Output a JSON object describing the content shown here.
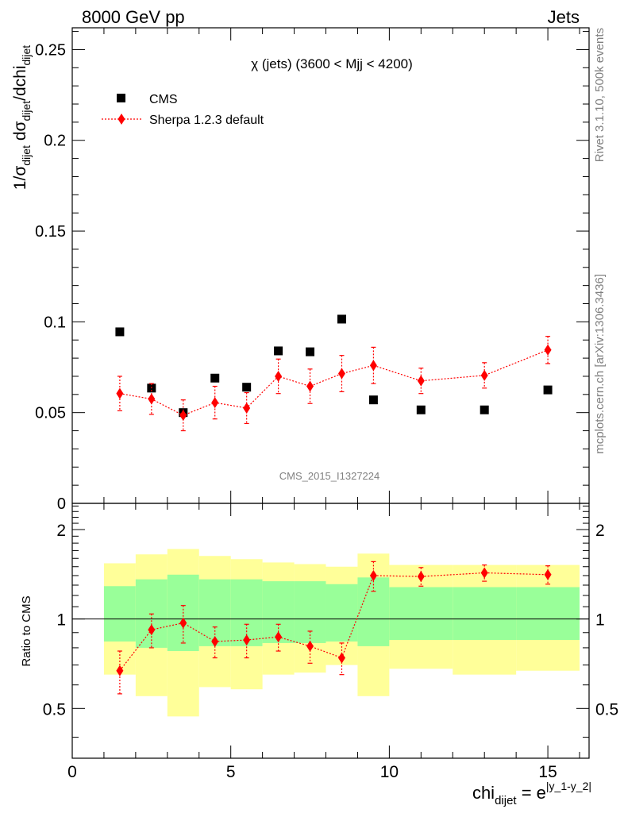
{
  "header": {
    "left": "8000 GeV pp",
    "right": "Jets"
  },
  "side": {
    "rivet": "Rivet 3.1.10,  500k events",
    "mcplots": "mcplots.cern.ch [arXiv:1306.3436]"
  },
  "chart_data": [
    {
      "type": "scatter",
      "title": "χ (jets) (3600 < Mjj < 4200)",
      "watermark": "CMS_2015_I1327224",
      "ylabel": {
        "prefix": "1/σ",
        "sub1": "dijet",
        "mid": " dσ",
        "sub2": "dijet",
        "mid2": "/dchi",
        "sub3": "dijet"
      },
      "xlim": [
        0,
        16.3
      ],
      "ylim": [
        0,
        0.262
      ],
      "yticks": [
        0,
        0.05,
        0.1,
        0.15,
        0.2,
        0.25
      ],
      "ytick_labels": [
        "0",
        "0.05",
        "0.1",
        "0.15",
        "0.2",
        "0.25"
      ],
      "legend": {
        "position": "top-left",
        "entries": [
          "CMS",
          "Sherpa 1.2.3 default"
        ]
      },
      "series": [
        {
          "name": "CMS",
          "color": "#000000",
          "marker": "square",
          "x": [
            1.5,
            2.5,
            3.5,
            4.5,
            5.5,
            6.5,
            7.5,
            8.5,
            9.5,
            11.0,
            13.0,
            15.0
          ],
          "y": [
            0.0945,
            0.0635,
            0.05,
            0.069,
            0.064,
            0.084,
            0.0835,
            0.1015,
            0.057,
            0.0515,
            0.0515,
            0.0625
          ]
        },
        {
          "name": "Sherpa 1.2.3 default",
          "color": "#ff0000",
          "marker": "diamond",
          "x": [
            1.5,
            2.5,
            3.5,
            4.5,
            5.5,
            6.5,
            7.5,
            8.5,
            9.5,
            11.0,
            13.0,
            15.0
          ],
          "y": [
            0.0605,
            0.0575,
            0.0485,
            0.0555,
            0.0525,
            0.07,
            0.0645,
            0.0715,
            0.076,
            0.0675,
            0.0705,
            0.0845
          ],
          "yerr": [
            0.0095,
            0.0085,
            0.0085,
            0.009,
            0.0085,
            0.0095,
            0.0095,
            0.01,
            0.01,
            0.007,
            0.007,
            0.0075
          ]
        }
      ]
    },
    {
      "type": "scatter",
      "ylabel": "Ratio to CMS",
      "xlabel": {
        "base": "chi",
        "sub": "dijet",
        "eq": " = e",
        "sup": "|y_1-y_2|"
      },
      "xlim": [
        0,
        16.3
      ],
      "ylim": [
        0.34,
        2.45
      ],
      "yticks": [
        0.5,
        1,
        2
      ],
      "ytick_labels": [
        "0.5",
        "1",
        "2"
      ],
      "xticks": [
        0,
        5,
        10,
        15
      ],
      "xtick_labels": [
        "0",
        "5",
        "10",
        "15"
      ],
      "bands": {
        "inner_color": "#99ff99",
        "outer_color": "#ffff99",
        "bins": [
          {
            "lo": 1,
            "hi": 2,
            "in_lo": 0.84,
            "in_hi": 1.29,
            "out_lo": 0.65,
            "out_hi": 1.54
          },
          {
            "lo": 2,
            "hi": 3,
            "in_lo": 0.8,
            "in_hi": 1.36,
            "out_lo": 0.55,
            "out_hi": 1.65
          },
          {
            "lo": 3,
            "hi": 4,
            "in_lo": 0.78,
            "in_hi": 1.41,
            "out_lo": 0.47,
            "out_hi": 1.72
          },
          {
            "lo": 4,
            "hi": 5,
            "in_lo": 0.81,
            "in_hi": 1.36,
            "out_lo": 0.59,
            "out_hi": 1.63
          },
          {
            "lo": 5,
            "hi": 6,
            "in_lo": 0.81,
            "in_hi": 1.36,
            "out_lo": 0.58,
            "out_hi": 1.59
          },
          {
            "lo": 6,
            "hi": 7,
            "in_lo": 0.83,
            "in_hi": 1.34,
            "out_lo": 0.65,
            "out_hi": 1.55
          },
          {
            "lo": 7,
            "hi": 8,
            "in_lo": 0.83,
            "in_hi": 1.34,
            "out_lo": 0.66,
            "out_hi": 1.53
          },
          {
            "lo": 8,
            "hi": 9,
            "in_lo": 0.84,
            "in_hi": 1.31,
            "out_lo": 0.7,
            "out_hi": 1.5
          },
          {
            "lo": 9,
            "hi": 10,
            "in_lo": 0.81,
            "in_hi": 1.38,
            "out_lo": 0.55,
            "out_hi": 1.66
          },
          {
            "lo": 10,
            "hi": 12,
            "in_lo": 0.85,
            "in_hi": 1.28,
            "out_lo": 0.68,
            "out_hi": 1.52
          },
          {
            "lo": 12,
            "hi": 14,
            "in_lo": 0.85,
            "in_hi": 1.28,
            "out_lo": 0.65,
            "out_hi": 1.52
          },
          {
            "lo": 14,
            "hi": 16,
            "in_lo": 0.85,
            "in_hi": 1.28,
            "out_lo": 0.67,
            "out_hi": 1.52
          }
        ]
      },
      "series": [
        {
          "name": "Sherpa 1.2.3 default / CMS",
          "color": "#ff0000",
          "x": [
            1.5,
            2.5,
            3.5,
            4.5,
            5.5,
            6.5,
            7.5,
            8.5,
            9.5,
            11.0,
            13.0,
            15.0
          ],
          "y": [
            0.67,
            0.92,
            0.97,
            0.84,
            0.85,
            0.87,
            0.81,
            0.74,
            1.4,
            1.39,
            1.43,
            1.41
          ],
          "yerr": [
            0.11,
            0.12,
            0.14,
            0.1,
            0.11,
            0.09,
            0.1,
            0.09,
            0.16,
            0.1,
            0.09,
            0.1
          ]
        }
      ]
    }
  ]
}
